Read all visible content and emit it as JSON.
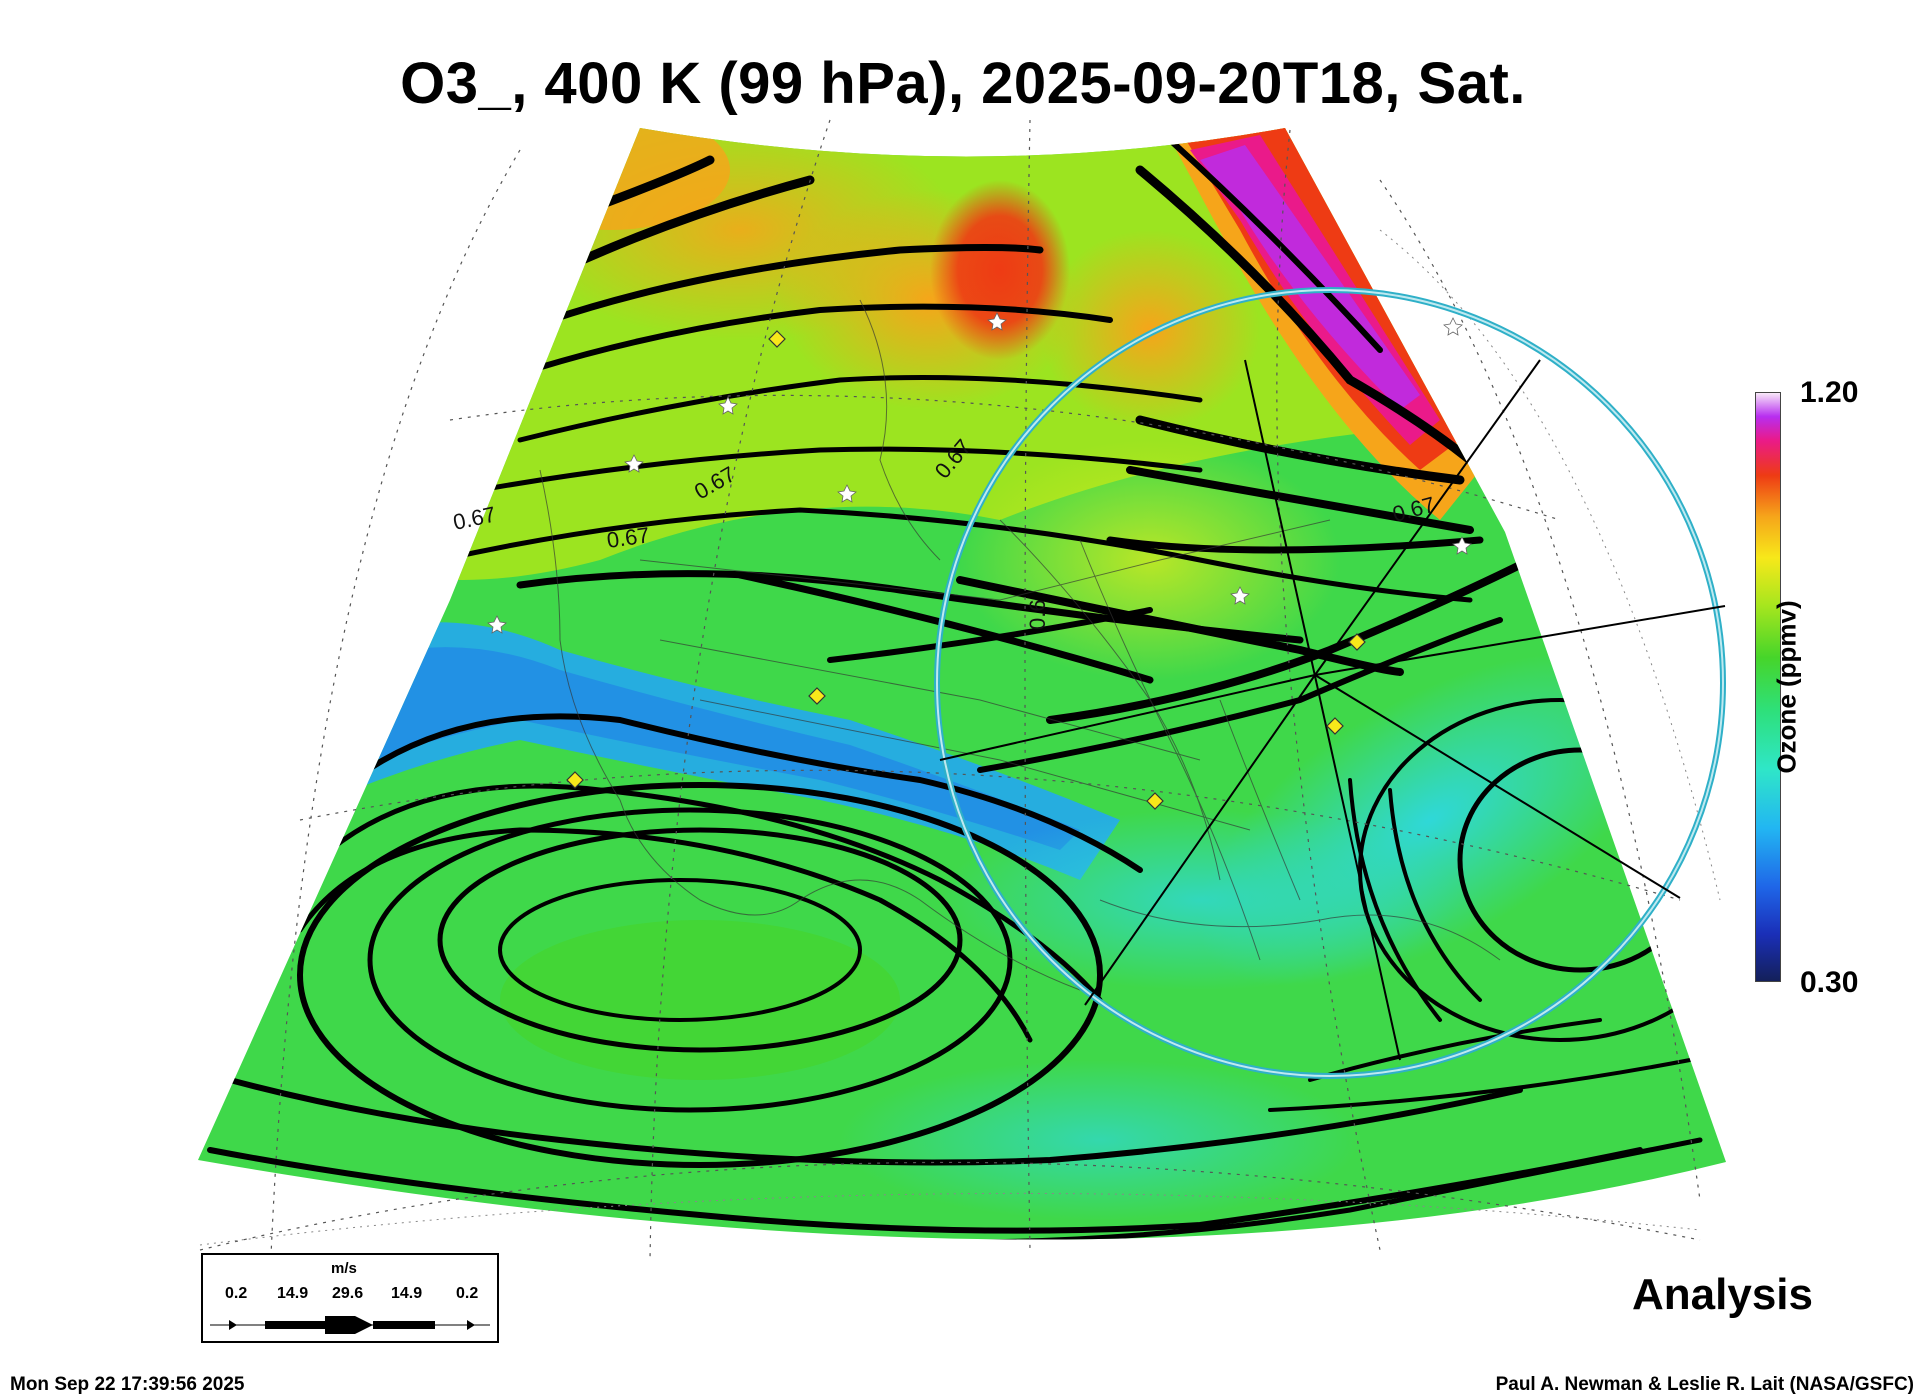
{
  "title": "O3_, 400 K (99 hPa), 2025-09-20T18, Sat.",
  "colorbar": {
    "max_label": "1.20",
    "min_label": "0.30",
    "label": "Ozone (ppmv)",
    "range": [
      0.3,
      1.2
    ]
  },
  "contour_labels": [
    "0.67",
    "0.67",
    "0.67",
    "0.67",
    "0.67",
    "0.6"
  ],
  "wind_legend": {
    "unit": "m/s",
    "ticks": [
      "0.2",
      "14.9",
      "29.6",
      "14.9",
      "0.2"
    ]
  },
  "analysis_label": "Analysis",
  "footer": {
    "timestamp": "Mon Sep 22 17:39:56 2025",
    "credit": "Paul A. Newman & Leslie R. Lait (NASA/GSFC)"
  },
  "colors": {
    "low": "#14205a",
    "mid": "#46d52a",
    "high": "#ee3b14",
    "max": "#f8e8f8",
    "circle": "#2fb0c8"
  }
}
